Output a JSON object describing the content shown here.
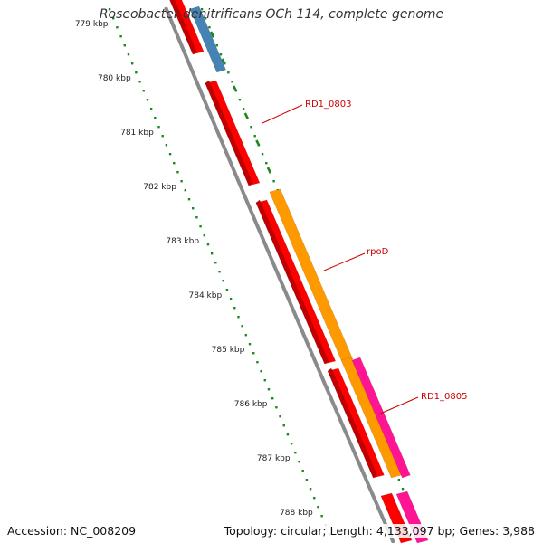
{
  "title": "Roseobacter denitrificans OCh 114, complete genome",
  "accession": "Accession: NC_008209",
  "stats": "Topology: circular; Length: 4,133,097 bp; Genes: 3,988",
  "ticks": [
    "779 kbp",
    "780 kbp",
    "781 kbp",
    "782 kbp",
    "783 kbp",
    "784 kbp",
    "785 kbp",
    "786 kbp",
    "787 kbp",
    "788 kbp"
  ],
  "gene_labels": [
    "RD1_0803",
    "rpoD",
    "RD1_0805"
  ],
  "colors": {
    "backbone": "#8a8a8a",
    "cds": "#ff0000",
    "cds_dark": "#c00000",
    "orange_gene": "#ff9900",
    "blue_gene": "#4682b4",
    "pink_gene": "#ff1493",
    "dots": "#1a8a1a",
    "label": "#cc0000"
  }
}
